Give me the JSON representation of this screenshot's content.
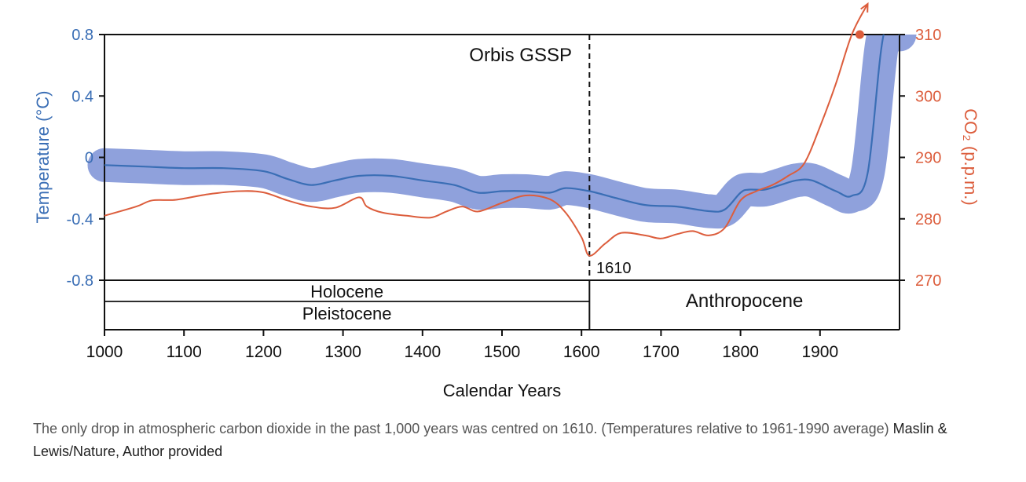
{
  "chart_data": {
    "type": "line",
    "x_range": [
      1000,
      2000
    ],
    "x_ticks": [
      "1000",
      "1100",
      "1200",
      "1300",
      "1400",
      "1500",
      "1600",
      "1700",
      "1800",
      "1900"
    ],
    "xlabel": "Calendar Years",
    "ylabel_left": "Temperature (°C)",
    "ylabel_right": "CO₂ (p.p.m.)",
    "left_axis": {
      "range": [
        -0.8,
        0.8
      ],
      "ticks": [
        "0.8",
        "0.4",
        "0",
        "-0.4",
        "-0.8"
      ]
    },
    "right_axis": {
      "range": [
        270,
        310
      ],
      "ticks": [
        "310",
        "300",
        "290",
        "280",
        "270"
      ]
    },
    "colors": {
      "temperature": "#3a6eb5",
      "band": "#8fa1dc",
      "co2": "#dc5d3c",
      "axis": "#111111"
    },
    "series": [
      {
        "name": "Temperature",
        "axis": "left",
        "uncertainty": 0.11,
        "x": [
          1000,
          1050,
          1100,
          1150,
          1200,
          1230,
          1260,
          1290,
          1320,
          1360,
          1400,
          1440,
          1470,
          1500,
          1530,
          1560,
          1580,
          1610,
          1640,
          1680,
          1720,
          1760,
          1780,
          1800,
          1810,
          1830,
          1850,
          1870,
          1890,
          1920,
          1940,
          1960,
          1980,
          2000
        ],
        "values": [
          -0.05,
          -0.06,
          -0.07,
          -0.07,
          -0.09,
          -0.14,
          -0.18,
          -0.15,
          -0.12,
          -0.12,
          -0.15,
          -0.18,
          -0.23,
          -0.22,
          -0.22,
          -0.23,
          -0.2,
          -0.22,
          -0.26,
          -0.31,
          -0.32,
          -0.35,
          -0.34,
          -0.23,
          -0.21,
          -0.21,
          -0.18,
          -0.15,
          -0.15,
          -0.22,
          -0.25,
          -0.1,
          0.8,
          0.8
        ]
      },
      {
        "name": "CO₂",
        "axis": "right",
        "x": [
          1000,
          1040,
          1060,
          1090,
          1130,
          1170,
          1200,
          1230,
          1260,
          1290,
          1320,
          1330,
          1350,
          1380,
          1410,
          1430,
          1450,
          1470,
          1500,
          1530,
          1560,
          1580,
          1600,
          1610,
          1630,
          1650,
          1680,
          1700,
          1720,
          1740,
          1760,
          1780,
          1800,
          1820,
          1840,
          1860,
          1880,
          1900,
          1920,
          1940,
          1960
        ],
        "values": [
          280.5,
          282,
          283,
          283.1,
          284,
          284.5,
          284.3,
          283,
          282,
          281.8,
          283.5,
          282,
          281,
          280.5,
          280.2,
          281.2,
          282,
          281.2,
          282.6,
          283.8,
          283.2,
          281,
          277,
          274,
          276,
          277.7,
          277.3,
          276.8,
          277.5,
          278,
          277.3,
          278.5,
          283,
          284.5,
          285.5,
          287,
          289,
          295,
          302,
          310,
          315
        ]
      }
    ],
    "annotations": {
      "gssp_year": 1610,
      "gssp_label": "Orbis GSSP",
      "drop_label": "1610",
      "highlight_point": {
        "x": 1950,
        "y": 310
      }
    },
    "epochs": {
      "holocene": "Holocene",
      "pleistocene": "Pleistocene",
      "anthropocene": "Anthropocene"
    }
  },
  "caption": {
    "text": "The only drop in atmospheric carbon dioxide in the past 1,000 years was centred on 1610. (Temperatures relative to 1961-1990 average)",
    "credit": "Maslin & Lewis/Nature, Author provided"
  }
}
